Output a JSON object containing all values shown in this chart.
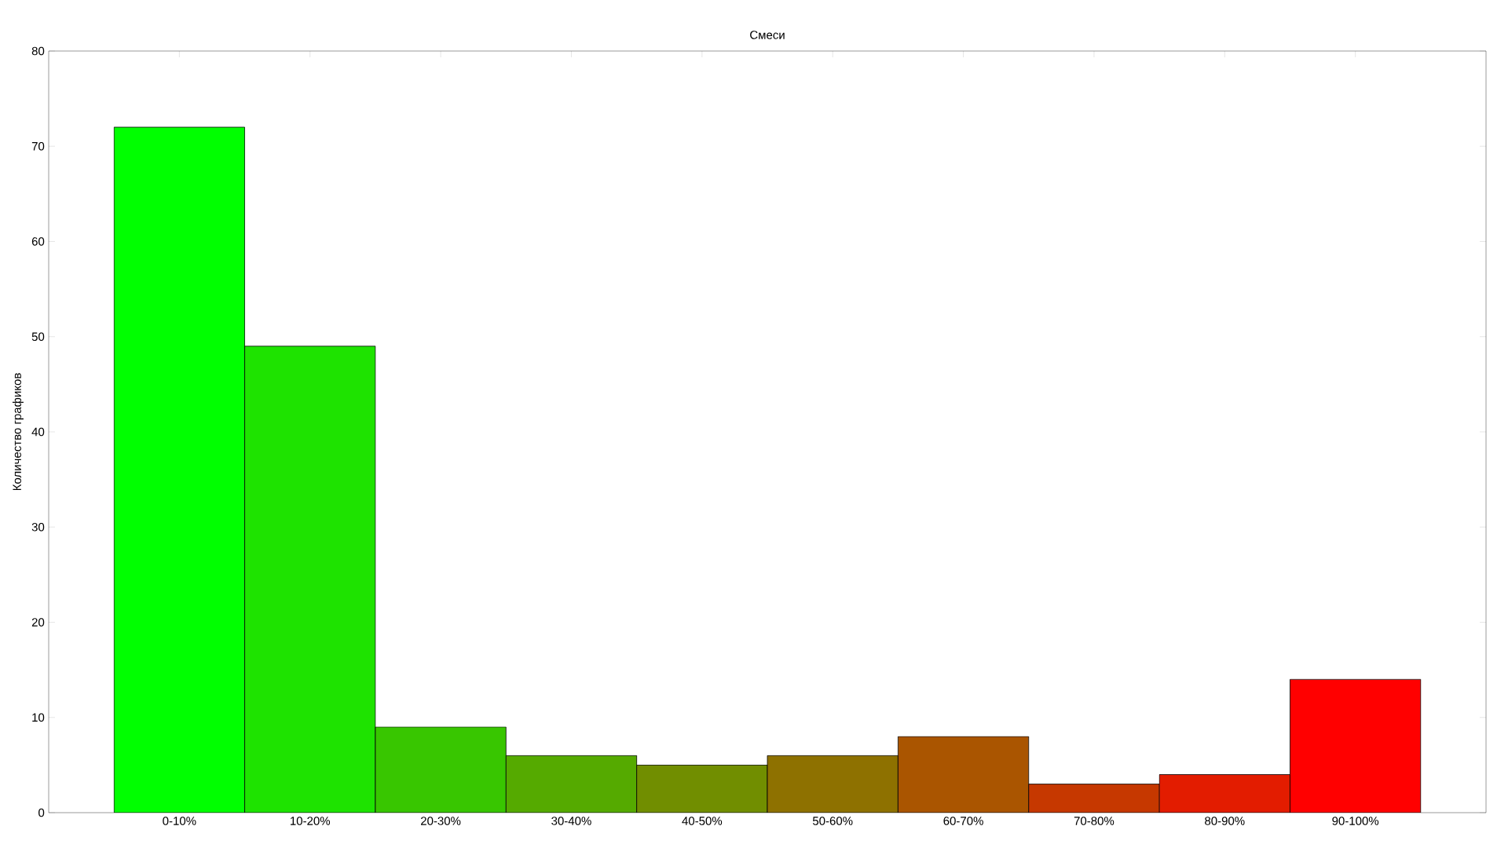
{
  "chart_data": {
    "type": "bar",
    "title": "Смеси",
    "ylabel": "Количество графиков",
    "categories": [
      "0-10%",
      "10-20%",
      "20-30%",
      "30-40%",
      "40-50%",
      "50-60%",
      "60-70%",
      "70-80%",
      "80-90%",
      "90-100%"
    ],
    "values": [
      72,
      49,
      9,
      6,
      5,
      6,
      8,
      3,
      4,
      14
    ],
    "colors": [
      "#00ff00",
      "#1ee300",
      "#38c600",
      "#55aa00",
      "#718e00",
      "#8e7100",
      "#aa5500",
      "#c63800",
      "#e31c00",
      "#ff0000"
    ],
    "ylim": [
      0,
      80
    ],
    "yticks": [
      0,
      10,
      20,
      30,
      40,
      50,
      60,
      70,
      80
    ]
  }
}
